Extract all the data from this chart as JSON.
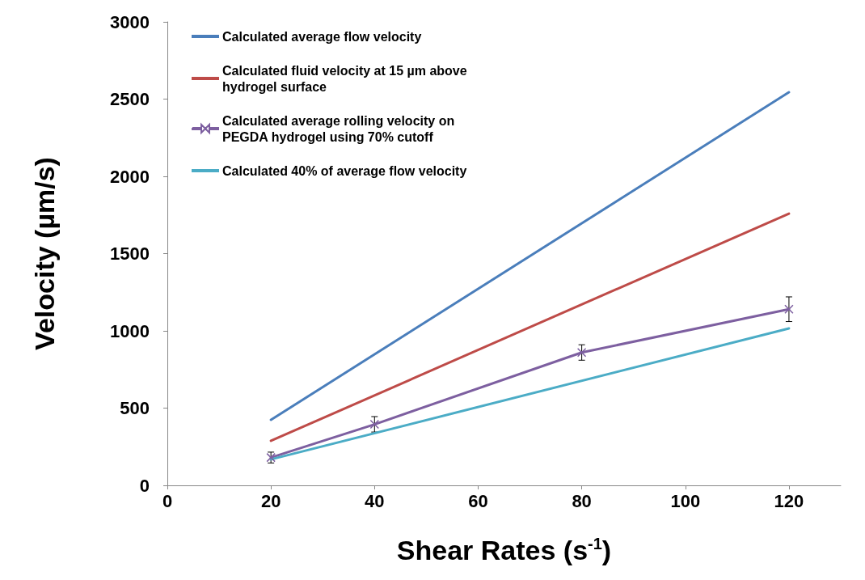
{
  "chart_data": {
    "type": "line",
    "xlabel": "Shear Rates (s$^{-1}$)",
    "ylabel": "Velocity (µm/s)",
    "xlim": [
      0,
      130
    ],
    "xticks": [
      0,
      20,
      40,
      60,
      80,
      100,
      120
    ],
    "ylim": [
      0,
      3000
    ],
    "yticks": [
      0,
      500,
      1000,
      1500,
      2000,
      2500,
      3000
    ],
    "grid": false,
    "legend": "top left",
    "line_style": "solid",
    "series": [
      {
        "name": "Calculated average flow velocity",
        "color": "#4a7ebb",
        "x": [
          20,
          120
        ],
        "values": [
          424,
          2544
        ],
        "marker": "none"
      },
      {
        "name": "Calculated fluid velocity at 15 µm above hydrogel surface",
        "color": "#be4b48",
        "x": [
          20,
          120
        ],
        "values": [
          288,
          1759
        ],
        "marker": "none"
      },
      {
        "name": "Calculated average rolling velocity on PEGDA hydrogel using 70% cutoff",
        "color": "#7d5fa0",
        "x": [
          20,
          40,
          80,
          120
        ],
        "values": [
          180,
          395,
          860,
          1140
        ],
        "errors": [
          35,
          50,
          50,
          80
        ],
        "marker": "cross"
      },
      {
        "name": "Calculated 40% of average flow velocity",
        "color": "#4bacc6",
        "x": [
          20,
          120
        ],
        "values": [
          168,
          1016
        ],
        "marker": "none"
      }
    ]
  }
}
